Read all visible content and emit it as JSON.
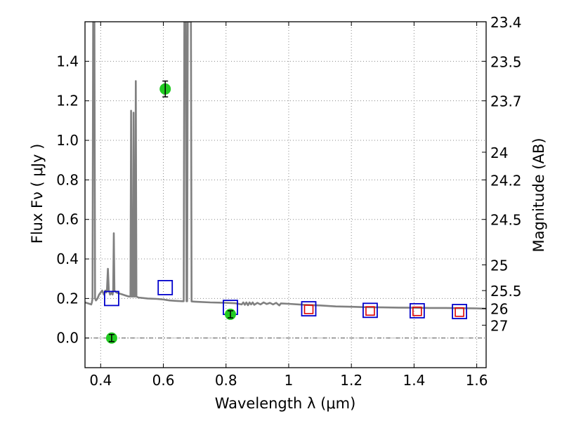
{
  "chart_data": {
    "type": "scatter",
    "xlabel": "Wavelength  λ (μm)",
    "ylabel_left": "Flux  Fν  ( μJy )",
    "ylabel_right": "Magnitude (AB)",
    "xlim": [
      0.35,
      1.63
    ],
    "ylim": [
      -0.15,
      1.6
    ],
    "grid": true,
    "x_ticks": [
      0.4,
      0.6,
      0.8,
      1.0,
      1.2,
      1.4,
      1.6
    ],
    "x_tick_labels": [
      "0.4",
      "0.6",
      "0.8",
      "1",
      "1.2",
      "1.4",
      "1.6"
    ],
    "y_ticks": [
      0.0,
      0.2,
      0.4,
      0.6,
      0.8,
      1.0,
      1.2,
      1.4
    ],
    "y_tick_labels": [
      "0.0",
      "0.2",
      "0.4",
      "0.6",
      "0.8",
      "1.0",
      "1.2",
      "1.4"
    ],
    "mag_ticks": [
      {
        "flux": 1.6,
        "label": "23.4"
      },
      {
        "flux": 1.4,
        "label": "23.5"
      },
      {
        "flux": 1.2,
        "label": "23.7"
      },
      {
        "flux": 0.94,
        "label": "24"
      },
      {
        "flux": 0.8,
        "label": "24.2"
      },
      {
        "flux": 0.6,
        "label": "24.5"
      },
      {
        "flux": 0.37,
        "label": "25"
      },
      {
        "flux": 0.24,
        "label": "25.5"
      },
      {
        "flux": 0.15,
        "label": "26"
      },
      {
        "flux": 0.065,
        "label": "27"
      }
    ],
    "colors": {
      "spectrum": "#808080",
      "observed": "#22cc22",
      "model_blue": "#0000cc",
      "model_red": "#dd0000",
      "zero_line": "#555555",
      "grid": "#888888"
    },
    "spectrum": [
      [
        0.35,
        0.18
      ],
      [
        0.36,
        0.175
      ],
      [
        0.37,
        0.17
      ],
      [
        0.372,
        0.18
      ],
      [
        0.374,
        0.2
      ],
      [
        0.376,
        1.6
      ],
      [
        0.38,
        1.6
      ],
      [
        0.382,
        0.2
      ],
      [
        0.385,
        0.19
      ],
      [
        0.39,
        0.2
      ],
      [
        0.395,
        0.22
      ],
      [
        0.4,
        0.23
      ],
      [
        0.405,
        0.24
      ],
      [
        0.41,
        0.22
      ],
      [
        0.415,
        0.24
      ],
      [
        0.418,
        0.23
      ],
      [
        0.42,
        0.24
      ],
      [
        0.423,
        0.35
      ],
      [
        0.426,
        0.24
      ],
      [
        0.43,
        0.22
      ],
      [
        0.435,
        0.23
      ],
      [
        0.438,
        0.22
      ],
      [
        0.44,
        0.24
      ],
      [
        0.442,
        0.53
      ],
      [
        0.444,
        0.24
      ],
      [
        0.45,
        0.23
      ],
      [
        0.46,
        0.225
      ],
      [
        0.47,
        0.22
      ],
      [
        0.48,
        0.215
      ],
      [
        0.49,
        0.21
      ],
      [
        0.495,
        0.21
      ],
      [
        0.497,
        1.15
      ],
      [
        0.499,
        0.21
      ],
      [
        0.503,
        0.21
      ],
      [
        0.505,
        1.14
      ],
      [
        0.507,
        0.21
      ],
      [
        0.51,
        0.21
      ],
      [
        0.512,
        1.3
      ],
      [
        0.514,
        0.21
      ],
      [
        0.52,
        0.205
      ],
      [
        0.55,
        0.2
      ],
      [
        0.58,
        0.198
      ],
      [
        0.6,
        0.195
      ],
      [
        0.62,
        0.19
      ],
      [
        0.64,
        0.188
      ],
      [
        0.66,
        0.186
      ],
      [
        0.665,
        0.186
      ],
      [
        0.667,
        1.6
      ],
      [
        0.672,
        1.6
      ],
      [
        0.674,
        0.186
      ],
      [
        0.676,
        0.186
      ],
      [
        0.678,
        1.6
      ],
      [
        0.688,
        1.6
      ],
      [
        0.69,
        0.185
      ],
      [
        0.7,
        0.184
      ],
      [
        0.75,
        0.18
      ],
      [
        0.8,
        0.178
      ],
      [
        0.83,
        0.176
      ],
      [
        0.85,
        0.17
      ],
      [
        0.855,
        0.18
      ],
      [
        0.86,
        0.168
      ],
      [
        0.865,
        0.18
      ],
      [
        0.87,
        0.166
      ],
      [
        0.875,
        0.18
      ],
      [
        0.88,
        0.17
      ],
      [
        0.885,
        0.18
      ],
      [
        0.89,
        0.168
      ],
      [
        0.9,
        0.178
      ],
      [
        0.91,
        0.17
      ],
      [
        0.92,
        0.18
      ],
      [
        0.93,
        0.172
      ],
      [
        0.94,
        0.178
      ],
      [
        0.95,
        0.17
      ],
      [
        0.96,
        0.178
      ],
      [
        0.97,
        0.165
      ],
      [
        0.975,
        0.175
      ],
      [
        1.0,
        0.173
      ],
      [
        1.05,
        0.168
      ],
      [
        1.1,
        0.165
      ],
      [
        1.15,
        0.16
      ],
      [
        1.2,
        0.158
      ],
      [
        1.25,
        0.156
      ],
      [
        1.3,
        0.155
      ],
      [
        1.35,
        0.154
      ],
      [
        1.4,
        0.153
      ],
      [
        1.45,
        0.152
      ],
      [
        1.5,
        0.152
      ],
      [
        1.55,
        0.151
      ],
      [
        1.6,
        0.15
      ],
      [
        1.63,
        0.148
      ]
    ],
    "observed": [
      {
        "x": 0.435,
        "y": 0.0,
        "yerr": 0.018
      },
      {
        "x": 0.606,
        "y": 1.26,
        "yerr": 0.04
      },
      {
        "x": 0.814,
        "y": 0.12,
        "yerr": 0.018
      }
    ],
    "model_blue": [
      {
        "x": 0.435,
        "y": 0.2
      },
      {
        "x": 0.606,
        "y": 0.255
      },
      {
        "x": 0.814,
        "y": 0.155
      },
      {
        "x": 1.064,
        "y": 0.148
      },
      {
        "x": 1.26,
        "y": 0.14
      },
      {
        "x": 1.41,
        "y": 0.138
      },
      {
        "x": 1.545,
        "y": 0.134
      }
    ],
    "model_red": [
      {
        "x": 1.064,
        "y": 0.145
      },
      {
        "x": 1.26,
        "y": 0.137
      },
      {
        "x": 1.41,
        "y": 0.135
      },
      {
        "x": 1.545,
        "y": 0.131
      }
    ]
  }
}
